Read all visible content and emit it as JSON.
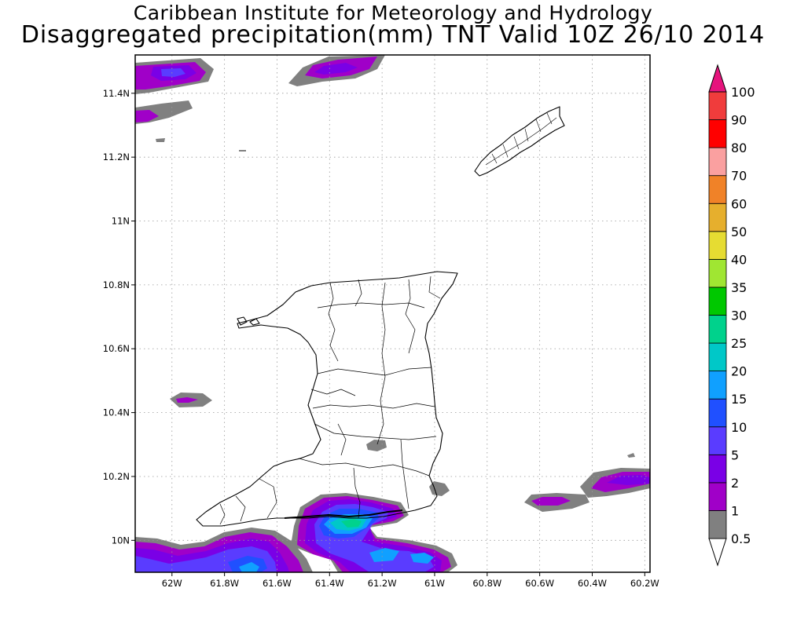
{
  "header": {
    "title_line1": "Caribbean Institute for Meteorology and Hydrology",
    "title_line2": "Disaggregated precipitation(mm) TNT Valid 10Z 26/10 2014"
  },
  "axes": {
    "x_ticks": [
      "62W",
      "61.8W",
      "61.6W",
      "61.4W",
      "61.2W",
      "61W",
      "60.8W",
      "60.6W",
      "60.4W",
      "60.2W"
    ],
    "y_ticks": [
      "11.4N",
      "11.2N",
      "11N",
      "10.8N",
      "10.6N",
      "10.4N",
      "10.2N",
      "10N"
    ],
    "lon_range": [
      -62.14,
      -60.18
    ],
    "lat_range": [
      9.9,
      11.52
    ],
    "grid": true
  },
  "colorbar": {
    "levels": [
      {
        "label": "0.5",
        "color": "#ffffff"
      },
      {
        "label": "1",
        "color": "#808080"
      },
      {
        "label": "2",
        "color": "#a000c8"
      },
      {
        "label": "5",
        "color": "#7a00e6"
      },
      {
        "label": "10",
        "color": "#5a3cff"
      },
      {
        "label": "15",
        "color": "#2050ff"
      },
      {
        "label": "20",
        "color": "#10a0ff"
      },
      {
        "label": "25",
        "color": "#00c8c8"
      },
      {
        "label": "30",
        "color": "#00d28c"
      },
      {
        "label": "35",
        "color": "#00c800"
      },
      {
        "label": "40",
        "color": "#a0e632"
      },
      {
        "label": "50",
        "color": "#e6dc32"
      },
      {
        "label": "60",
        "color": "#e6af2d"
      },
      {
        "label": "70",
        "color": "#f08228"
      },
      {
        "label": "80",
        "color": "#faa0a0"
      },
      {
        "label": "90",
        "color": "#ff0000"
      },
      {
        "label": "100",
        "color": "#f03c3c"
      }
    ],
    "over_color": "#e6147d"
  },
  "features": {
    "islands": [
      "trinidad",
      "tobago"
    ]
  }
}
